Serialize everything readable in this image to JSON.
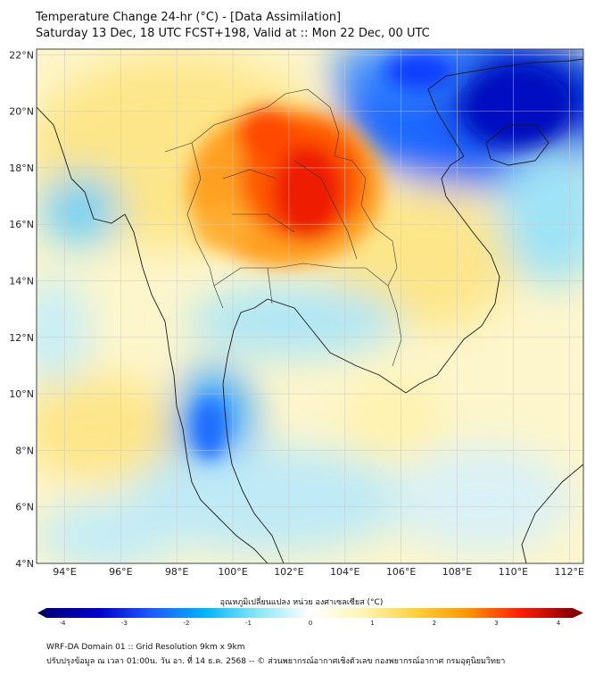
{
  "title": {
    "line1": "Temperature Change 24-hr (°C) - [Data Assimilation]",
    "line2": "Saturday 13 Dec, 18 UTC FCST+198, Valid at :: Mon 22 Dec, 00 UTC"
  },
  "map": {
    "lon_range": [
      93,
      112.5
    ],
    "lat_range": [
      4,
      22.2
    ],
    "lat_ticks": [
      "22°N",
      "20°N",
      "18°N",
      "16°N",
      "14°N",
      "12°N",
      "10°N",
      "8°N",
      "6°N",
      "4°N"
    ],
    "lon_ticks": [
      "94°E",
      "96°E",
      "98°E",
      "100°E",
      "102°E",
      "104°E",
      "106°E",
      "108°E",
      "110°E",
      "112°E"
    ],
    "anomalies": [
      {
        "name": "cold-gulf-of-tonkin",
        "lon": 109.5,
        "lat": 20.2,
        "value": -4
      },
      {
        "name": "cold-south-china",
        "lon": 107.5,
        "lat": 21.5,
        "value": -3
      },
      {
        "name": "warm-laos-thailand",
        "lon": 102.5,
        "lat": 17.6,
        "value": 3.5
      },
      {
        "name": "warm-north-thailand",
        "lon": 101.0,
        "lat": 19.3,
        "value": 2.5
      },
      {
        "name": "cold-andaman-south",
        "lon": 98.8,
        "lat": 8.5,
        "value": -2.5
      },
      {
        "name": "cold-bay-of-bengal",
        "lon": 94.5,
        "lat": 16.0,
        "value": -1.5
      },
      {
        "name": "warm-central-vietnam",
        "lon": 106.5,
        "lat": 14.5,
        "value": 1.5
      },
      {
        "name": "cool-gulf-of-thailand",
        "lon": 101.5,
        "lat": 11.5,
        "value": -1
      }
    ]
  },
  "colorbar": {
    "label": "อุณหภูมิเปลี่ยนแปลง หน่วย องศาเซลเซียส (°C)",
    "min": -4,
    "max": 4,
    "ticks": [
      "-4",
      "-3",
      "-2",
      "-1",
      "0",
      "1",
      "2",
      "3",
      "4"
    ],
    "colors": [
      "#000080",
      "#0000cd",
      "#1e5aff",
      "#00b4ff",
      "#87e6f5",
      "#ffffff",
      "#fff5b4",
      "#ffd23c",
      "#ff9600",
      "#ff1e00",
      "#8c0000"
    ]
  },
  "footer": {
    "line1": "WRF-DA Domain 01 :: Grid Resolution 9km x 9km",
    "line2": "ปรับปรุงข้อมูล ณ เวลา 01:00น. วัน อา. ที่ 14 ธ.ค. 2568 -- © ส่วนพยากรณ์อากาศเชิงตัวเลข กองพยากรณ์อากาศ กรมอุตุนิยมวิทยา"
  }
}
